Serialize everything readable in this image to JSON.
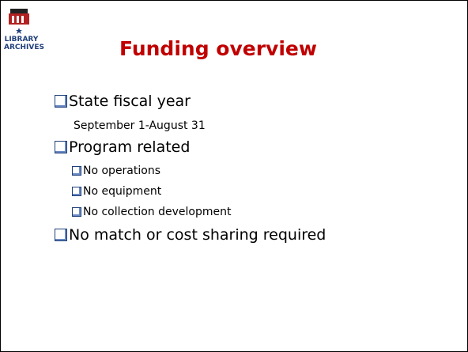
{
  "logo": {
    "line1": "LIBRARY",
    "line2": "ARCHIVES"
  },
  "title": "Funding overview",
  "bullets": [
    {
      "text": "State fiscal year",
      "detail": "September 1-August 31"
    },
    {
      "text": "Program related",
      "items": [
        "No operations",
        "No equipment",
        "No collection development"
      ]
    },
    {
      "text": "No match or cost sharing required"
    }
  ]
}
